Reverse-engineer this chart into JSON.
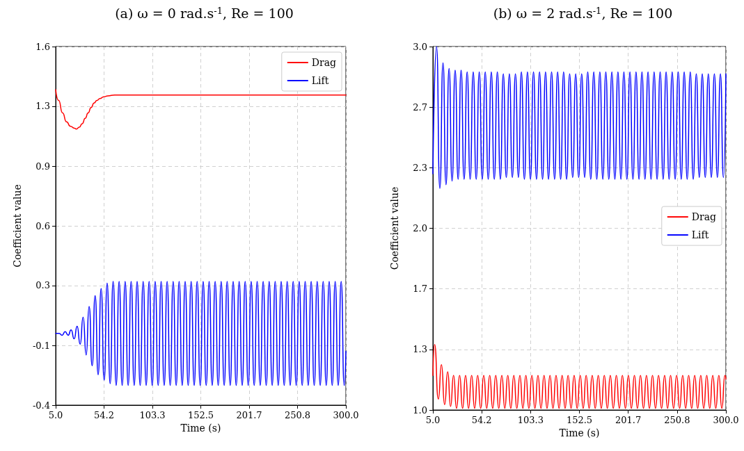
{
  "chart_data": [
    {
      "type": "line",
      "title": "(a) ω = 0 rad.s$^{-1}$, Re = 100",
      "xlabel": "Time (s)",
      "ylabel": "Coefficient value",
      "xlim": [
        5,
        300
      ],
      "xticks": [
        {
          "value": 5,
          "label": "5.0"
        },
        {
          "value": 54.1667,
          "label": "54.2"
        },
        {
          "value": 103.3333,
          "label": "103.3"
        },
        {
          "value": 152.5,
          "label": "152.5"
        },
        {
          "value": 201.6667,
          "label": "201.7"
        },
        {
          "value": 250.8333,
          "label": "250.8"
        },
        {
          "value": 300,
          "label": "300.0"
        }
      ],
      "ylim": [
        -0.4,
        1.6
      ],
      "yticks": [
        -0.4,
        {
          "value": -0.0667,
          "label": "-0.1"
        },
        {
          "value": 0.2667,
          "label": "0.3"
        },
        0.6,
        {
          "value": 0.9333,
          "label": "0.9"
        },
        {
          "value": 1.2667,
          "label": "1.3"
        },
        1.6
      ],
      "grid": true,
      "legend": "top right",
      "series": [
        {
          "name": "Drag",
          "color": "#ff0000",
          "x": [
            5,
            8,
            12,
            16,
            20,
            24,
            26,
            29,
            32,
            35,
            38,
            41,
            44,
            47,
            50,
            54,
            58,
            65,
            80,
            100,
            150,
            200,
            250,
            300
          ],
          "values": [
            1.36,
            1.3,
            1.23,
            1.18,
            1.155,
            1.145,
            1.14,
            1.15,
            1.17,
            1.2,
            1.23,
            1.26,
            1.285,
            1.3,
            1.31,
            1.32,
            1.325,
            1.33,
            1.33,
            1.33,
            1.33,
            1.33,
            1.33,
            1.33
          ]
        },
        {
          "name": "Lift",
          "color": "#0000ff",
          "x": [
            5,
            8.5,
            11.6,
            14.6,
            17.7,
            20.7,
            23.8,
            26.8,
            29.9,
            32.9,
            36.0,
            39.0,
            42.1,
            45.1,
            48.2,
            51.2,
            54.3,
            57.3,
            60.4,
            63.4,
            66.5,
            69.5,
            72.6,
            75.6,
            78.7,
            81.7,
            84.8,
            87.8,
            90.9,
            93.9,
            97.0,
            100.0,
            103.1,
            106.1,
            109.2,
            112.2,
            115.3,
            118.3,
            121.4,
            124.4,
            127.5,
            130.5,
            133.6,
            136.6,
            139.7,
            142.7,
            145.8,
            148.8,
            151.9,
            154.9,
            158.0,
            161.0,
            164.1,
            167.1,
            170.2,
            173.2,
            176.3,
            179.3,
            182.4,
            185.4,
            188.5,
            191.5,
            194.6,
            197.6,
            200.7,
            203.7,
            206.8,
            209.8,
            212.9,
            215.9,
            219.0,
            222.0,
            225.1,
            228.1,
            231.2,
            234.2,
            237.3,
            240.3,
            243.4,
            246.4,
            249.5,
            252.5,
            255.6,
            258.6,
            261.7,
            264.7,
            267.8,
            270.8,
            273.9,
            276.9,
            280.0,
            283.0,
            286.1,
            289.1,
            292.2,
            295.2,
            298.3,
            300
          ],
          "values": [
            0.0,
            0.0,
            -0.01,
            0.01,
            -0.01,
            0.02,
            -0.03,
            0.04,
            -0.06,
            0.09,
            -0.12,
            0.15,
            -0.18,
            0.21,
            -0.23,
            0.25,
            -0.26,
            0.28,
            -0.28,
            0.29,
            -0.29,
            0.29,
            -0.29,
            0.29,
            -0.29,
            0.29,
            -0.29,
            0.29,
            -0.29,
            0.29,
            -0.29,
            0.29,
            -0.29,
            0.29,
            -0.29,
            0.29,
            -0.29,
            0.29,
            -0.29,
            0.29,
            -0.29,
            0.29,
            -0.29,
            0.29,
            -0.29,
            0.29,
            -0.29,
            0.29,
            -0.29,
            0.29,
            -0.29,
            0.29,
            -0.29,
            0.29,
            -0.29,
            0.29,
            -0.29,
            0.29,
            -0.29,
            0.29,
            -0.29,
            0.29,
            -0.29,
            0.29,
            -0.29,
            0.29,
            -0.29,
            0.29,
            -0.29,
            0.29,
            -0.29,
            0.29,
            -0.29,
            0.29,
            -0.29,
            0.29,
            -0.29,
            0.29,
            -0.29,
            0.29,
            -0.29,
            0.29,
            -0.29,
            0.29,
            -0.29,
            0.29,
            -0.29,
            0.29,
            -0.29,
            0.29,
            -0.29,
            0.29,
            -0.29,
            0.29,
            -0.29,
            0.29,
            -0.29,
            -0.1
          ]
        }
      ]
    },
    {
      "type": "line",
      "title": "(b) ω = 2 rad.s$^{-1}$, Re = 100",
      "xlabel": "Time (s)",
      "ylabel": "Coefficient value",
      "xlim": [
        5,
        300
      ],
      "xticks": [
        {
          "value": 5,
          "label": "5.0"
        },
        {
          "value": 54.1667,
          "label": "54.2"
        },
        {
          "value": 103.3333,
          "label": "103.3"
        },
        {
          "value": 152.5,
          "label": "152.5"
        },
        {
          "value": 201.6667,
          "label": "201.7"
        },
        {
          "value": 250.8333,
          "label": "250.8"
        },
        {
          "value": 300,
          "label": "300.0"
        }
      ],
      "ylim": [
        1.0,
        3.0
      ],
      "yticks": [
        {
          "value": 1,
          "label": "1.0"
        },
        {
          "value": 1.3333,
          "label": "1.3"
        },
        {
          "value": 1.6667,
          "label": "1.7"
        },
        {
          "value": 2,
          "label": "2.0"
        },
        {
          "value": 2.3333,
          "label": "2.3"
        },
        {
          "value": 2.6667,
          "label": "2.7"
        },
        {
          "value": 3,
          "label": "3.0"
        }
      ],
      "grid": true,
      "legend": "right",
      "series": [
        {
          "name": "Drag",
          "color": "#ff0000",
          "x": [
            5,
            6.7,
            10.5,
            13.6,
            16.8,
            19.9,
            22.8,
            25.8,
            28.8,
            31.9,
            34.9,
            37.9,
            40.9,
            44.0,
            47.0,
            50.1,
            53.1,
            56.2,
            59.2,
            62.2,
            65.2,
            68.3,
            71.3,
            74.4,
            77.4,
            80.4,
            83.4,
            86.5,
            89.5,
            92.6,
            95.6,
            98.6,
            101.6,
            104.7,
            107.7,
            110.8,
            113.8,
            116.9,
            119.9,
            122.9,
            125.9,
            129.0,
            132.0,
            135.1,
            138.1,
            141.1,
            144.1,
            147.2,
            150.2,
            153.3,
            156.3,
            159.3,
            162.3,
            165.4,
            168.4,
            171.5,
            174.5,
            177.6,
            180.6,
            183.6,
            186.6,
            189.7,
            192.7,
            195.8,
            198.8,
            201.8,
            204.8,
            207.9,
            210.9,
            214.0,
            217.0,
            220.0,
            223.0,
            226.1,
            229.1,
            232.2,
            235.2,
            238.3,
            241.3,
            244.3,
            247.3,
            250.4,
            253.4,
            256.5,
            259.5,
            262.5,
            265.5,
            268.6,
            271.6,
            274.7,
            277.7,
            280.7,
            283.7,
            286.8,
            289.8,
            292.9,
            295.9,
            299.0,
            300
          ],
          "values": [
            1.19,
            1.36,
            1.06,
            1.25,
            1.03,
            1.21,
            1.02,
            1.19,
            1.01,
            1.19,
            1.01,
            1.19,
            1.01,
            1.19,
            1.01,
            1.19,
            1.01,
            1.19,
            1.01,
            1.19,
            1.01,
            1.19,
            1.01,
            1.19,
            1.01,
            1.19,
            1.01,
            1.19,
            1.01,
            1.19,
            1.01,
            1.19,
            1.01,
            1.19,
            1.01,
            1.19,
            1.01,
            1.19,
            1.01,
            1.19,
            1.01,
            1.19,
            1.01,
            1.19,
            1.01,
            1.19,
            1.01,
            1.19,
            1.01,
            1.19,
            1.01,
            1.19,
            1.01,
            1.19,
            1.01,
            1.19,
            1.01,
            1.19,
            1.01,
            1.19,
            1.01,
            1.19,
            1.01,
            1.19,
            1.01,
            1.19,
            1.01,
            1.19,
            1.01,
            1.19,
            1.01,
            1.19,
            1.01,
            1.19,
            1.01,
            1.19,
            1.01,
            1.19,
            1.01,
            1.19,
            1.01,
            1.19,
            1.01,
            1.19,
            1.01,
            1.19,
            1.01,
            1.19,
            1.01,
            1.19,
            1.01,
            1.19,
            1.01,
            1.19,
            1.01,
            1.19,
            1.01,
            1.19,
            1.17
          ]
        },
        {
          "name": "Lift",
          "color": "#0000ff",
          "x": [
            5,
            8.7,
            12.0,
            15.2,
            18.2,
            21.3,
            24.3,
            27.4,
            30.4,
            33.4,
            36.4,
            39.5,
            42.5,
            45.6,
            48.6,
            51.7,
            54.7,
            57.7,
            60.7,
            63.8,
            66.8,
            69.9,
            72.9,
            75.9,
            78.9,
            82.0,
            85.0,
            88.1,
            91.1,
            94.1,
            97.1,
            100.2,
            103.2,
            106.3,
            109.3,
            112.4,
            115.4,
            118.4,
            121.4,
            124.5,
            127.5,
            130.6,
            133.6,
            136.6,
            139.6,
            142.7,
            145.7,
            148.8,
            151.8,
            154.8,
            157.8,
            160.9,
            163.9,
            167.0,
            170.0,
            173.1,
            176.1,
            179.1,
            182.1,
            185.2,
            188.2,
            191.3,
            194.3,
            197.3,
            200.3,
            203.4,
            206.4,
            209.5,
            212.5,
            215.5,
            218.5,
            221.6,
            224.6,
            227.7,
            230.7,
            233.8,
            236.8,
            239.8,
            242.8,
            245.9,
            248.9,
            252.0,
            255.0,
            258.0,
            261.0,
            264.1,
            267.1,
            270.2,
            273.2,
            276.2,
            279.2,
            282.3,
            285.3,
            288.4,
            291.4,
            294.5,
            297.5,
            300
          ],
          "values": [
            2.3,
            3.0,
            2.22,
            2.91,
            2.24,
            2.88,
            2.26,
            2.87,
            2.27,
            2.87,
            2.27,
            2.86,
            2.27,
            2.86,
            2.27,
            2.86,
            2.27,
            2.86,
            2.27,
            2.86,
            2.27,
            2.86,
            2.27,
            2.85,
            2.28,
            2.85,
            2.28,
            2.85,
            2.28,
            2.86,
            2.27,
            2.86,
            2.27,
            2.86,
            2.27,
            2.86,
            2.27,
            2.86,
            2.27,
            2.86,
            2.27,
            2.86,
            2.27,
            2.86,
            2.27,
            2.85,
            2.28,
            2.85,
            2.28,
            2.85,
            2.28,
            2.86,
            2.27,
            2.86,
            2.27,
            2.86,
            2.27,
            2.86,
            2.27,
            2.86,
            2.27,
            2.86,
            2.27,
            2.86,
            2.27,
            2.86,
            2.27,
            2.86,
            2.27,
            2.86,
            2.27,
            2.86,
            2.27,
            2.86,
            2.27,
            2.86,
            2.27,
            2.86,
            2.27,
            2.86,
            2.27,
            2.86,
            2.27,
            2.86,
            2.27,
            2.86,
            2.27,
            2.85,
            2.28,
            2.85,
            2.28,
            2.85,
            2.28,
            2.85,
            2.28,
            2.85,
            2.28,
            2.85
          ]
        }
      ]
    }
  ]
}
